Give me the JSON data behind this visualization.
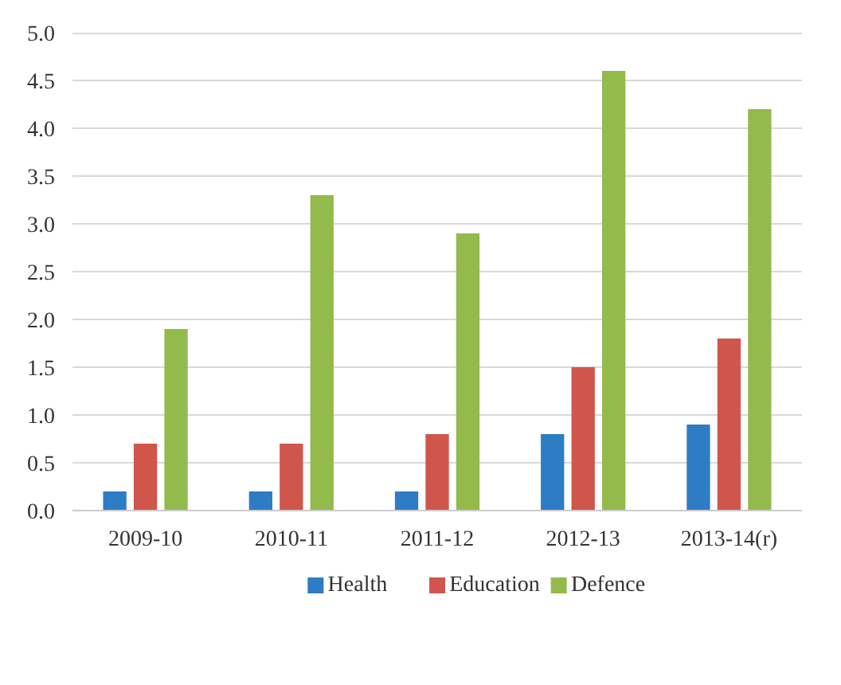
{
  "chart_data": {
    "type": "bar",
    "categories": [
      "2009-10",
      "2010-11",
      "2011-12",
      "2012-13",
      "2013-14(r)"
    ],
    "series": [
      {
        "name": "Health",
        "color": "#2e7cc4",
        "values": [
          0.2,
          0.2,
          0.2,
          0.8,
          0.9
        ]
      },
      {
        "name": "Education",
        "color": "#d0564c",
        "values": [
          0.7,
          0.7,
          0.8,
          1.5,
          1.8
        ]
      },
      {
        "name": "Defence",
        "color": "#92bb4c",
        "values": [
          1.9,
          3.3,
          2.9,
          4.6,
          4.2
        ]
      }
    ],
    "ylim": [
      0,
      5.0
    ],
    "yticks": [
      {
        "value": 0,
        "label": "0.0"
      },
      0.5,
      {
        "value": 1,
        "label": "1.0"
      },
      1.5,
      {
        "value": 2,
        "label": "2.0"
      },
      2.5,
      {
        "value": 3,
        "label": "3.0"
      },
      3.5,
      {
        "value": 4,
        "label": "4.0"
      },
      4.5,
      {
        "value": 5,
        "label": "5.0"
      }
    ],
    "grid": "y",
    "legend": "bottom"
  }
}
